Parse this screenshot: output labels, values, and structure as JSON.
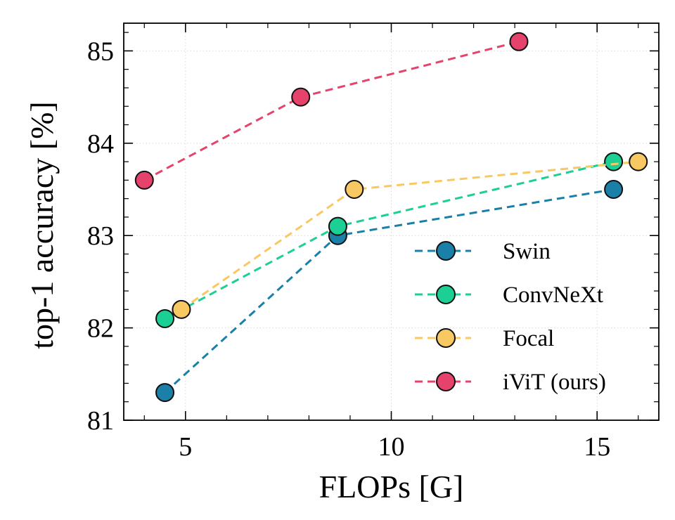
{
  "chart_data": {
    "type": "line",
    "title": "",
    "xlabel": "FLOPs [G]",
    "ylabel": "top-1 accuracy [%]",
    "xlim": [
      3.5,
      16.5
    ],
    "ylim": [
      81,
      85.3
    ],
    "xticks": [
      5,
      10,
      15
    ],
    "yticks": [
      81,
      82,
      83,
      84,
      85
    ],
    "x_tick_labels": [
      "5",
      "10",
      "15"
    ],
    "y_tick_labels": [
      "81",
      "82",
      "83",
      "84",
      "85"
    ],
    "grid": true,
    "legend_position": "lower-right",
    "series": [
      {
        "name": "Swin",
        "color": "#1a80a8",
        "x": [
          4.5,
          8.7,
          15.4
        ],
        "y": [
          81.3,
          83.0,
          83.5
        ]
      },
      {
        "name": "ConvNeXt",
        "color": "#1ccf94",
        "x": [
          4.5,
          8.7,
          15.4
        ],
        "y": [
          82.1,
          83.1,
          83.8
        ]
      },
      {
        "name": "Focal",
        "color": "#f8c862",
        "x": [
          4.9,
          9.1,
          16.0
        ],
        "y": [
          82.2,
          83.5,
          83.8
        ]
      },
      {
        "name": "iViT (ours)",
        "color": "#e5436b",
        "x": [
          4.0,
          7.8,
          13.1
        ],
        "y": [
          83.6,
          84.5,
          85.1
        ]
      }
    ]
  }
}
